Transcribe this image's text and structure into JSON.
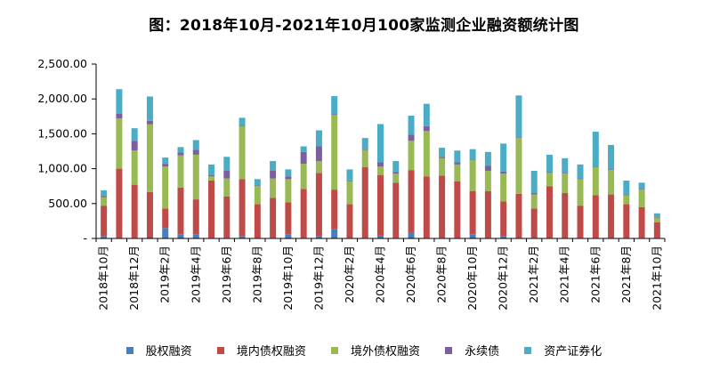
{
  "chart_data": {
    "type": "bar",
    "stacked": true,
    "title": "图：2018年10月-2021年10月100家监测企业融资额统计图",
    "xlabel": "",
    "ylabel": "",
    "ylim": [
      0,
      2500
    ],
    "yticks": [
      0,
      500,
      1000,
      1500,
      2000,
      2500
    ],
    "ytick_labels": [
      "-",
      "500.00",
      "1,000.00",
      "1,500.00",
      "2,000.00",
      "2,500.00"
    ],
    "categories": [
      "2018年10月",
      "2018年11月",
      "2018年12月",
      "2019年1月",
      "2019年2月",
      "2019年3月",
      "2019年4月",
      "2019年5月",
      "2019年6月",
      "2019年7月",
      "2019年8月",
      "2019年9月",
      "2019年10月",
      "2019年11月",
      "2019年12月",
      "2020年1月",
      "2020年2月",
      "2020年3月",
      "2020年4月",
      "2020年5月",
      "2020年6月",
      "2020年7月",
      "2020年8月",
      "2020年9月",
      "2020年10月",
      "2020年11月",
      "2020年12月",
      "2021年1月",
      "2021年2月",
      "2021年3月",
      "2021年4月",
      "2021年5月",
      "2021年6月",
      "2021年7月",
      "2021年8月",
      "2021年9月",
      "2021年10月"
    ],
    "tick_labels": [
      "2018年10月",
      "2018年12月",
      "2019年2月",
      "2019年4月",
      "2019年6月",
      "2019年8月",
      "2019年10月",
      "2019年12月",
      "2020年2月",
      "2020年4月",
      "2020年6月",
      "2020年8月",
      "2020年10月",
      "2020年12月",
      "2021年2月",
      "2021年4月",
      "2021年6月",
      "2021年8月",
      "2021年10月"
    ],
    "series": [
      {
        "name": "股权融资",
        "color": "#4a7ebb",
        "values": [
          30,
          10,
          10,
          5,
          150,
          60,
          60,
          10,
          10,
          30,
          10,
          10,
          60,
          10,
          30,
          130,
          10,
          10,
          40,
          10,
          90,
          10,
          10,
          10,
          60,
          10,
          30,
          10,
          10,
          10,
          10,
          10,
          10,
          10,
          10,
          10,
          10
        ]
      },
      {
        "name": "境内债权融资",
        "color": "#be4b48",
        "values": [
          440,
          990,
          760,
          660,
          280,
          670,
          500,
          820,
          590,
          820,
          480,
          570,
          460,
          700,
          910,
          570,
          480,
          1010,
          870,
          790,
          890,
          880,
          890,
          810,
          620,
          670,
          500,
          630,
          420,
          740,
          640,
          460,
          610,
          620,
          480,
          440,
          220
        ]
      },
      {
        "name": "境外债权融资",
        "color": "#98b954",
        "values": [
          120,
          720,
          490,
          970,
          600,
          460,
          640,
          60,
          260,
          760,
          260,
          280,
          330,
          360,
          170,
          1070,
          330,
          250,
          120,
          130,
          420,
          650,
          250,
          240,
          440,
          290,
          400,
          800,
          200,
          190,
          280,
          380,
          400,
          350,
          130,
          250,
          70
        ]
      },
      {
        "name": "永续债",
        "color": "#7d5fa0",
        "values": [
          20,
          70,
          140,
          50,
          40,
          40,
          70,
          20,
          110,
          10,
          10,
          110,
          40,
          170,
          210,
          10,
          10,
          10,
          60,
          20,
          90,
          70,
          20,
          30,
          10,
          70,
          30,
          10,
          20,
          10,
          10,
          10,
          10,
          10,
          10,
          10,
          10
        ]
      },
      {
        "name": "资产证券化",
        "color": "#4bacc6",
        "values": [
          80,
          350,
          180,
          350,
          90,
          80,
          140,
          150,
          200,
          110,
          90,
          140,
          100,
          80,
          230,
          260,
          160,
          160,
          550,
          160,
          270,
          320,
          130,
          170,
          150,
          200,
          400,
          600,
          320,
          250,
          210,
          200,
          500,
          350,
          200,
          90,
          50
        ]
      }
    ]
  }
}
